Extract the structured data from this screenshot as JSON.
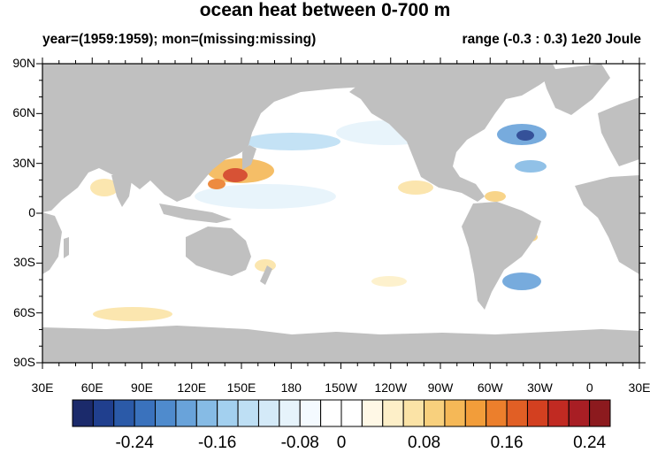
{
  "title": "ocean heat between 0-700 m",
  "subtitle_left": "year=(1959:1959); mon=(missing:missing)",
  "subtitle_right": "range (-0.3 : 0.3) 1e20 Joule",
  "lat_labels": [
    "90N",
    "60N",
    "30N",
    "0",
    "30S",
    "60S",
    "90S"
  ],
  "lon_labels": [
    "30E",
    "60E",
    "90E",
    "120E",
    "150E",
    "180",
    "150W",
    "120W",
    "90W",
    "60W",
    "30W",
    "0",
    "30E"
  ],
  "colorbar": {
    "labels": [
      "-0.24",
      "-0.16",
      "-0.08",
      "0",
      "0.08",
      "0.16",
      "0.24"
    ],
    "colors": [
      "#1b2a6b",
      "#203f8e",
      "#2b5aa8",
      "#3a72bd",
      "#4f8bcd",
      "#69a3da",
      "#86bbe5",
      "#a3d0ef",
      "#bedff4",
      "#d4eaf8",
      "#e6f3fb",
      "#f4faff",
      "#ffffff",
      "#ffffff",
      "#fff8e6",
      "#fdefc8",
      "#fbe3a6",
      "#f8d07d",
      "#f5b857",
      "#f29d3a",
      "#ec7f2c",
      "#e15f25",
      "#d34020",
      "#c12a22",
      "#a81e24",
      "#8c1a1e"
    ]
  },
  "map": {
    "land_color": "#c0c0c0",
    "ocean_color": "#ffffff"
  }
}
